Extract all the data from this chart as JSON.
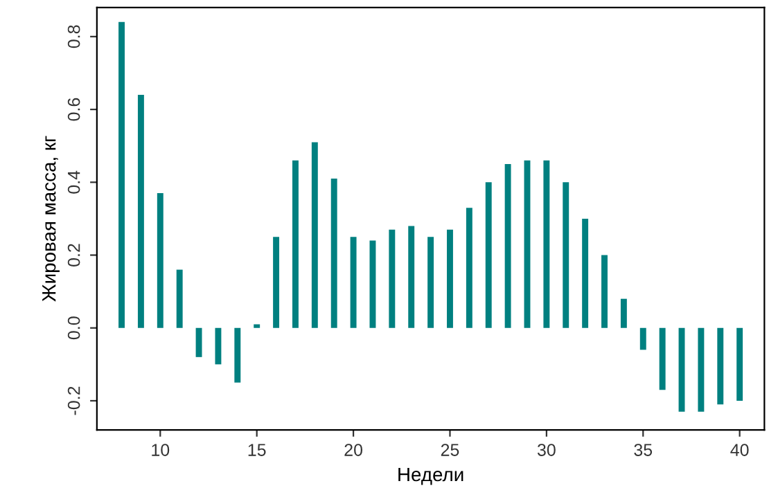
{
  "chart_data": {
    "type": "bar",
    "xlabel": "Недели",
    "ylabel": "Жировая масса, кг",
    "x": [
      8,
      9,
      10,
      11,
      12,
      13,
      14,
      15,
      16,
      17,
      18,
      19,
      20,
      21,
      22,
      23,
      24,
      25,
      26,
      27,
      28,
      29,
      30,
      31,
      32,
      33,
      34,
      35,
      36,
      37,
      38,
      39,
      40
    ],
    "values": [
      0.84,
      0.64,
      0.37,
      0.16,
      -0.08,
      -0.1,
      -0.15,
      0.01,
      0.25,
      0.46,
      0.51,
      0.41,
      0.25,
      0.24,
      0.27,
      0.28,
      0.25,
      0.27,
      0.33,
      0.4,
      0.45,
      0.46,
      0.46,
      0.4,
      0.3,
      0.2,
      0.08,
      -0.06,
      -0.17,
      -0.23,
      -0.23,
      -0.21,
      -0.2
    ],
    "color": "#008080",
    "xlim": [
      6.72,
      41.28
    ],
    "ylim": [
      -0.28,
      0.88
    ],
    "xticks": [
      10,
      15,
      20,
      25,
      30,
      35,
      40
    ],
    "yticks": [
      {
        "value": -0.2,
        "label": "-0.2"
      },
      {
        "value": 0.0,
        "label": "0.0"
      },
      {
        "value": 0.2,
        "label": "0.2"
      },
      {
        "value": 0.4,
        "label": "0.4"
      },
      {
        "value": 0.6,
        "label": "0.6"
      },
      {
        "value": 0.8,
        "label": "0.8"
      }
    ],
    "grid": false
  }
}
